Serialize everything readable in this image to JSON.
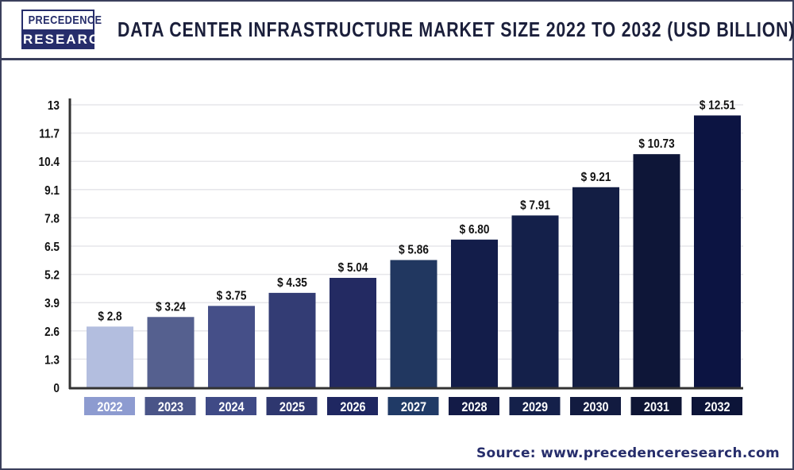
{
  "logo": {
    "line1": "PRECEDENCE",
    "line2": "RESEARCH"
  },
  "title": "DATA CENTER INFRASTRUCTURE MARKET SIZE 2022 TO 2032 (USD BILLION)",
  "source": "Source: www.precedenceresearch.com",
  "chart_data": {
    "type": "bar",
    "title": "DATA CENTER INFRASTRUCTURE MARKET SIZE 2022 TO 2032 (USD BILLION)",
    "categories": [
      "2022",
      "2023",
      "2024",
      "2025",
      "2026",
      "2027",
      "2028",
      "2029",
      "2030",
      "2031",
      "2032"
    ],
    "values": [
      2.8,
      3.24,
      3.75,
      4.35,
      5.04,
      5.86,
      6.8,
      7.91,
      9.21,
      10.73,
      12.51
    ],
    "data_labels": [
      "$ 2.8",
      "$ 3.24",
      "$ 3.75",
      "$ 4.35",
      "$ 5.04",
      "$ 5.86",
      "$ 6.80",
      "$ 7.91",
      "$ 9.21",
      "$ 10.73",
      "$ 12.51"
    ],
    "yticks": [
      "0",
      "1.3",
      "2.6",
      "3.9",
      "5.2",
      "6.5",
      "7.8",
      "9.1",
      "10.4",
      "11.7",
      "13"
    ],
    "ylim": [
      0,
      13
    ],
    "grid": true,
    "bar_colors": [
      "#b3bedf",
      "#55608f",
      "#454f88",
      "#333c74",
      "#232a62",
      "#213760",
      "#131d4a",
      "#14204a",
      "#131e44",
      "#0e1638",
      "#0c1442"
    ],
    "label_colors": [
      "#8d9bd0",
      "#4a5588",
      "#3f4a86",
      "#2e376f",
      "#1f2761",
      "#203a66",
      "#131b47",
      "#14204a",
      "#121b40",
      "#0e1535",
      "#0c1438"
    ]
  }
}
